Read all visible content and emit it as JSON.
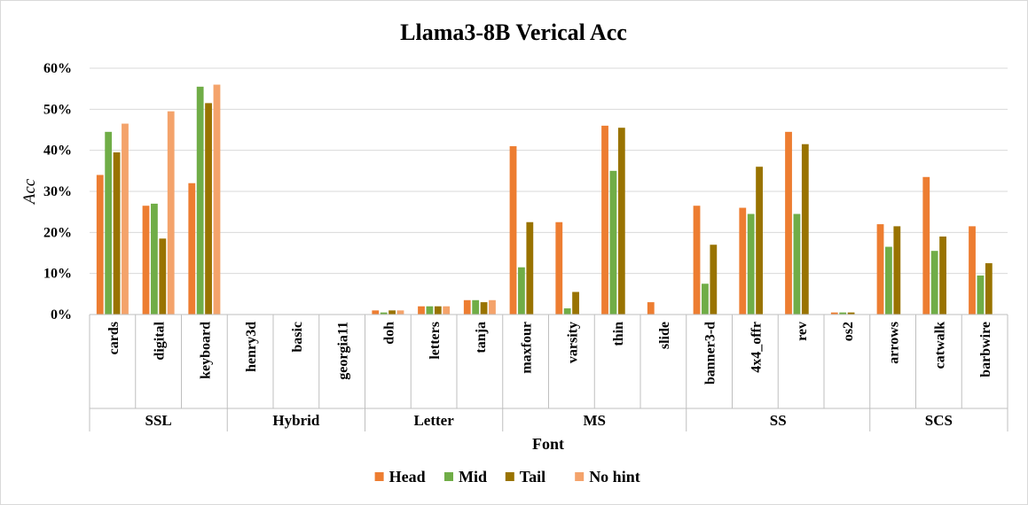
{
  "chart_data": {
    "type": "bar",
    "title": "Llama3-8B Verical Acc",
    "xlabel": "Font",
    "ylabel": "Acc",
    "ylim": [
      0,
      0.6
    ],
    "yticks": [
      "0%",
      "10%",
      "20%",
      "30%",
      "40%",
      "50%",
      "60%"
    ],
    "grid": true,
    "legend_position": "bottom",
    "groups": [
      {
        "name": "SSL",
        "categories": [
          "cards",
          "digital",
          "keyboard"
        ]
      },
      {
        "name": "Hybrid",
        "categories": [
          "henry3d",
          "basic",
          "georgia11"
        ]
      },
      {
        "name": "Letter",
        "categories": [
          "doh",
          "letters",
          "tanja"
        ]
      },
      {
        "name": "MS",
        "categories": [
          "maxfour",
          "varsity",
          "thin",
          "slide"
        ]
      },
      {
        "name": "SS",
        "categories": [
          "banner3-d",
          "4x4_offr",
          "rev",
          "os2"
        ]
      },
      {
        "name": "SCS",
        "categories": [
          "arrows",
          "catwalk",
          "barbwire"
        ]
      }
    ],
    "categories": [
      "cards",
      "digital",
      "keyboard",
      "henry3d",
      "basic",
      "georgia11",
      "doh",
      "letters",
      "tanja",
      "maxfour",
      "varsity",
      "thin",
      "slide",
      "banner3-d",
      "4x4_offr",
      "rev",
      "os2",
      "arrows",
      "catwalk",
      "barbwire"
    ],
    "series": [
      {
        "name": "Head",
        "color": "#ED7D31",
        "values": [
          0.34,
          0.265,
          0.32,
          0,
          0,
          0,
          0.01,
          0.02,
          0.035,
          0.41,
          0.225,
          0.46,
          0.03,
          0.265,
          0.26,
          0.445,
          0.005,
          0.22,
          0.335,
          0.215
        ]
      },
      {
        "name": "Mid",
        "color": "#70AD47",
        "values": [
          0.445,
          0.27,
          0.555,
          0,
          0,
          0,
          0.005,
          0.02,
          0.035,
          0.115,
          0.015,
          0.35,
          0,
          0.075,
          0.245,
          0.245,
          0.005,
          0.165,
          0.155,
          0.095
        ]
      },
      {
        "name": "Tail",
        "color": "#997300",
        "values": [
          0.395,
          0.185,
          0.515,
          0,
          0,
          0,
          0.01,
          0.02,
          0.03,
          0.225,
          0.055,
          0.455,
          0,
          0.17,
          0.36,
          0.415,
          0.005,
          0.215,
          0.19,
          0.125
        ]
      },
      {
        "name": "No hint",
        "color": "#F4A36B",
        "values": [
          0.465,
          0.495,
          0.56,
          0,
          0,
          0,
          0.01,
          0.02,
          0.035,
          0,
          0,
          0,
          0,
          0,
          0,
          0,
          0,
          0,
          0,
          0
        ]
      }
    ]
  }
}
